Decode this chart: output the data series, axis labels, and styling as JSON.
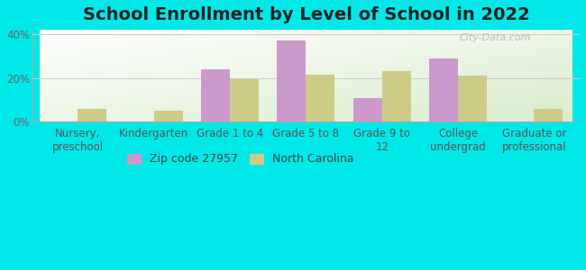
{
  "title": "School Enrollment by Level of School in 2022",
  "categories": [
    "Nursery,\npreschool",
    "Kindergarten",
    "Grade 1 to 4",
    "Grade 5 to 8",
    "Grade 9 to\n12",
    "College\nundergrad",
    "Graduate or\nprofessional"
  ],
  "zip_values": [
    0,
    0,
    24,
    37,
    11,
    29,
    0
  ],
  "nc_values": [
    6,
    5,
    19.5,
    21.5,
    23,
    21,
    6
  ],
  "zip_color": "#cc99cc",
  "nc_color": "#cccc88",
  "background_outer": "#00e8e8",
  "ylim": [
    0,
    42
  ],
  "yticks": [
    0,
    20,
    40
  ],
  "ytick_labels": [
    "0%",
    "20%",
    "40%"
  ],
  "bar_width": 0.38,
  "legend_labels": [
    "Zip code 27957",
    "North Carolina"
  ],
  "watermark": "City-Data.com",
  "title_fontsize": 14,
  "axis_label_fontsize": 8.5
}
